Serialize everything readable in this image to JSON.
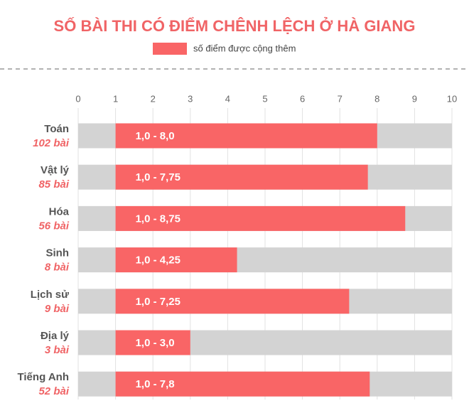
{
  "chart_data": {
    "type": "range-bar",
    "title": "SỐ BÀI THI CÓ ĐIỂM CHÊNH LỆCH Ở HÀ GIANG",
    "categories": [
      "Toán",
      "Vật lý",
      "Hóa",
      "Sinh",
      "Lịch sử",
      "Địa lý",
      "Tiếng Anh"
    ],
    "category_notes": [
      "102 bài",
      "85 bài",
      "56 bài",
      "8 bài",
      "9 bài",
      "3 bài",
      "52 bài"
    ],
    "series": [
      {
        "name": "số điểm được cộng thêm",
        "color": "#f96566",
        "low": [
          1.0,
          1.0,
          1.0,
          1.0,
          1.0,
          1.0,
          1.0
        ],
        "high": [
          8.0,
          7.75,
          8.75,
          4.25,
          7.25,
          3.0,
          7.8
        ],
        "value_labels": [
          "1,0 - 8,0",
          "1,0 - 7,75",
          "1,0 - 8,75",
          "1,0 - 4,25",
          "1,0 - 7,25",
          "1,0 - 3,0",
          "1,0 - 7,8"
        ]
      }
    ],
    "xlim": [
      0,
      10
    ],
    "xticks": [
      0,
      1,
      2,
      3,
      4,
      5,
      6,
      7,
      8,
      9,
      10
    ],
    "track_color": "#d3d3d3",
    "grid": true
  }
}
